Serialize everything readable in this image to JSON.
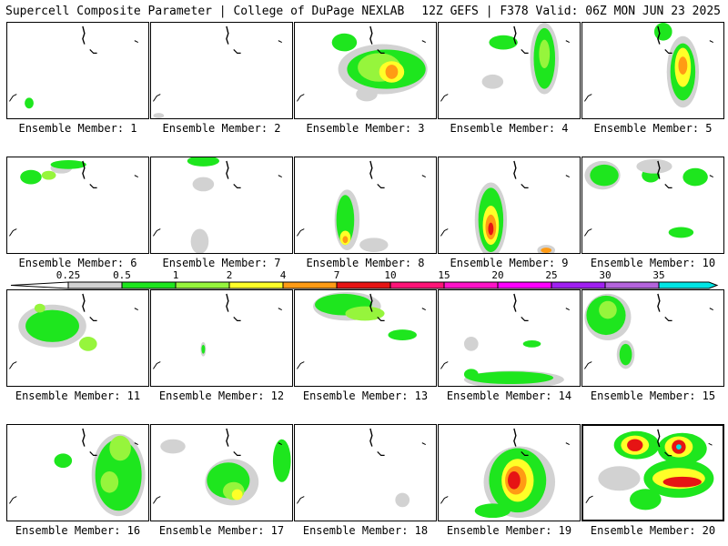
{
  "header": {
    "left": "Supercell Composite Parameter | College of DuPage NEXLAB",
    "right": "12Z GEFS | F378 Valid: 06Z MON JUN 23 2025"
  },
  "panels": [
    {
      "label": "Ensemble Member: 1"
    },
    {
      "label": "Ensemble Member: 2"
    },
    {
      "label": "Ensemble Member: 3"
    },
    {
      "label": "Ensemble Member: 4"
    },
    {
      "label": "Ensemble Member: 5"
    },
    {
      "label": "Ensemble Member: 6"
    },
    {
      "label": "Ensemble Member: 7"
    },
    {
      "label": "Ensemble Member: 8"
    },
    {
      "label": "Ensemble Member: 9"
    },
    {
      "label": "Ensemble Member: 10"
    },
    {
      "label": "Ensemble Member: 11"
    },
    {
      "label": "Ensemble Member: 12"
    },
    {
      "label": "Ensemble Member: 13"
    },
    {
      "label": "Ensemble Member: 14"
    },
    {
      "label": "Ensemble Member: 15"
    },
    {
      "label": "Ensemble Member: 16"
    },
    {
      "label": "Ensemble Member: 17"
    },
    {
      "label": "Ensemble Member: 18"
    },
    {
      "label": "Ensemble Member: 19"
    },
    {
      "label": "Ensemble Member: 20"
    }
  ],
  "colorbar": {
    "labels": [
      "0.25",
      "0.5",
      "1",
      "2",
      "4",
      "7",
      "10",
      "15",
      "20",
      "25",
      "30",
      "35"
    ],
    "colors": [
      "#d2d2d2",
      "#1ee61e",
      "#96f53c",
      "#ffff28",
      "#ff9b14",
      "#e61414",
      "#ff1478",
      "#ff14c8",
      "#ff00ff",
      "#a020f0",
      "#b464dc",
      "#00e5e5"
    ]
  }
}
